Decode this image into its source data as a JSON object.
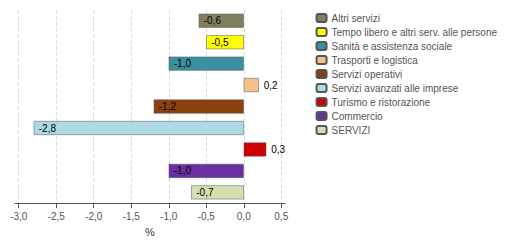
{
  "chart_data": {
    "type": "bar",
    "orientation": "horizontal",
    "categories": [
      "Altri servizi",
      "Tempo libero e altri serv. alle persone",
      "Sanità e assistenza sociale",
      "Trasporti e logistica",
      "Servizi operativi",
      "Servizi avanzati alle imprese",
      "Turismo e ristorazione",
      "Commercio",
      "SERVIZI"
    ],
    "values": [
      -0.6,
      -0.5,
      -1.0,
      0.2,
      -1.2,
      -2.8,
      0.3,
      -1.0,
      -0.7
    ],
    "value_labels": [
      "-0,6",
      "-0,5",
      "-1,0",
      "0,2",
      "-1,2",
      "-2,8",
      "0,3",
      "-1,0",
      "-0,7"
    ],
    "colors": [
      "#808060",
      "#ffff00",
      "#3a8fa0",
      "#f4c08a",
      "#8b4010",
      "#add8e6",
      "#cc0000",
      "#6a2fa0",
      "#d2e0b0"
    ],
    "xlabel": "%",
    "xlim": [
      -3.05,
      0.55
    ],
    "xticks": [
      {
        "value": -3.0,
        "label": "-3,0"
      },
      {
        "value": -2.5,
        "label": "-2,5"
      },
      {
        "value": -2.0,
        "label": "-2,0"
      },
      {
        "value": -1.5,
        "label": "-1,5"
      },
      {
        "value": -1.0,
        "label": "-1,0"
      },
      {
        "value": -0.5,
        "label": "-0,5"
      },
      {
        "value": 0.0,
        "label": "0,0"
      },
      {
        "value": 0.5,
        "label": "0,5"
      }
    ],
    "grid": true,
    "legend": "right",
    "data_labels": true,
    "tick_labels": "x"
  }
}
